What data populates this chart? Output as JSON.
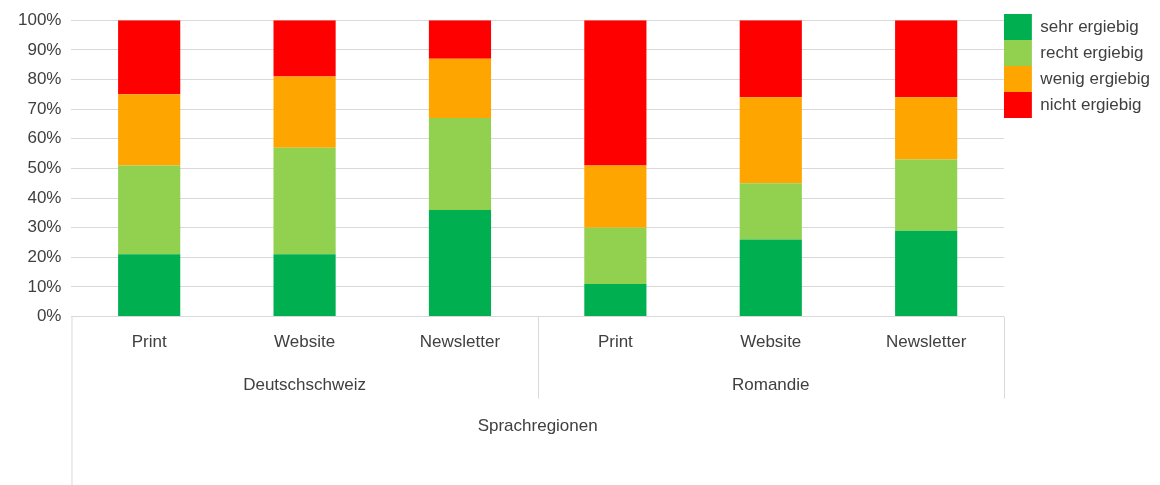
{
  "chart_data": {
    "type": "bar",
    "stacked": true,
    "xlabel": "Sprachregionen",
    "categories": [
      "Print",
      "Website",
      "Newsletter",
      "Print",
      "Website",
      "Newsletter"
    ],
    "annotations": [
      "Deutschschweiz",
      "Romandie"
    ],
    "series": [
      {
        "name": "sehr ergiebig",
        "color": "#00b050",
        "values": [
          21,
          21,
          36,
          11,
          26,
          29
        ]
      },
      {
        "name": "recht ergiebig",
        "color": "#92d050",
        "values": [
          30,
          36,
          31,
          19,
          19,
          24
        ]
      },
      {
        "name": "wenig ergiebig",
        "color": "#ffa500",
        "values": [
          24,
          24,
          20,
          21,
          29,
          21
        ]
      },
      {
        "name": "nicht ergiebig",
        "color": "#ff0000",
        "values": [
          25,
          19,
          13,
          49,
          26,
          26
        ]
      }
    ],
    "ylim": [
      0,
      100
    ],
    "yticks": [
      {
        "value": 0,
        "label": "0%"
      },
      {
        "value": 10,
        "label": "10%"
      },
      {
        "value": 20,
        "label": "20%"
      },
      {
        "value": 30,
        "label": "30%"
      },
      {
        "value": 40,
        "label": "40%"
      },
      {
        "value": 50,
        "label": "50%"
      },
      {
        "value": 60,
        "label": "60%"
      },
      {
        "value": 70,
        "label": "70%"
      },
      {
        "value": 80,
        "label": "80%"
      },
      {
        "value": 90,
        "label": "90%"
      },
      {
        "value": 100,
        "label": "100%"
      }
    ],
    "grid": "y",
    "legend": "top right"
  }
}
